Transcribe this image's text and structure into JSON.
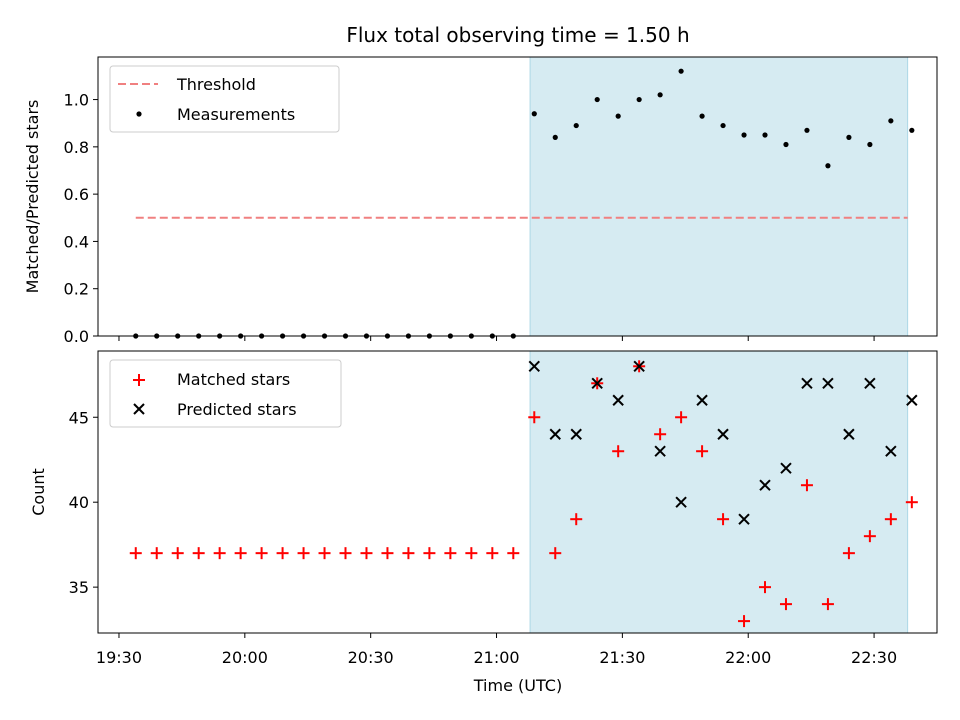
{
  "title": "Flux total observing time = 1.50 h",
  "colors": {
    "threshold": "#f08080",
    "measurement": "#000000",
    "matched": "#ff0000",
    "predicted": "#000000",
    "highlight": "#add8e6"
  },
  "chart_data": [
    {
      "type": "scatter",
      "ylabel": "Matched/Predicted stars",
      "xlim": [
        "19:25",
        "22:45"
      ],
      "ylim": [
        0,
        1.18
      ],
      "yticks": [
        "0.0",
        "0.2",
        "0.4",
        "0.6",
        "0.8",
        "1.0"
      ],
      "highlight_span": [
        "21:08",
        "22:38"
      ],
      "legend": {
        "position": "top-left",
        "entries": [
          "Threshold",
          "Measurements"
        ]
      },
      "threshold": {
        "name": "Threshold",
        "y": 0.5,
        "x_range": [
          "19:34",
          "22:38"
        ],
        "style": "dashed"
      },
      "series": [
        {
          "name": "Measurements",
          "x": [
            "19:34",
            "19:39",
            "19:44",
            "19:49",
            "19:54",
            "19:59",
            "20:04",
            "20:09",
            "20:14",
            "20:19",
            "20:24",
            "20:29",
            "20:34",
            "20:39",
            "20:44",
            "20:49",
            "20:54",
            "20:59",
            "21:04",
            "21:09",
            "21:14",
            "21:19",
            "21:24",
            "21:29",
            "21:34",
            "21:39",
            "21:44",
            "21:49",
            "21:54",
            "21:59",
            "22:04",
            "22:09",
            "22:14",
            "22:19",
            "22:24",
            "22:29",
            "22:34",
            "22:39"
          ],
          "y": [
            0,
            0,
            0,
            0,
            0,
            0,
            0,
            0,
            0,
            0,
            0,
            0,
            0,
            0,
            0,
            0,
            0,
            0,
            0,
            0.94,
            0.84,
            0.89,
            1.0,
            0.93,
            1.0,
            1.02,
            1.12,
            0.93,
            0.89,
            0.85,
            0.85,
            0.81,
            0.87,
            0.72,
            0.84,
            0.81,
            0.91,
            0.87
          ]
        }
      ]
    },
    {
      "type": "scatter",
      "xlabel": "Time (UTC)",
      "ylabel": "Count",
      "xlim": [
        "19:25",
        "22:45"
      ],
      "ylim": [
        32.3,
        48.9
      ],
      "yticks": [
        "35",
        "40",
        "45"
      ],
      "xticks": [
        "19:30",
        "20:00",
        "20:30",
        "21:00",
        "21:30",
        "22:00",
        "22:30"
      ],
      "highlight_span": [
        "21:08",
        "22:38"
      ],
      "legend": {
        "position": "top-left",
        "entries": [
          "Matched stars",
          "Predicted stars"
        ]
      },
      "series": [
        {
          "name": "Matched stars",
          "marker": "plus",
          "x": [
            "19:34",
            "19:39",
            "19:44",
            "19:49",
            "19:54",
            "19:59",
            "20:04",
            "20:09",
            "20:14",
            "20:19",
            "20:24",
            "20:29",
            "20:34",
            "20:39",
            "20:44",
            "20:49",
            "20:54",
            "20:59",
            "21:04",
            "21:09",
            "21:14",
            "21:19",
            "21:24",
            "21:29",
            "21:34",
            "21:39",
            "21:44",
            "21:49",
            "21:54",
            "21:59",
            "22:04",
            "22:09",
            "22:14",
            "22:19",
            "22:24",
            "22:29",
            "22:34",
            "22:39"
          ],
          "y": [
            37,
            37,
            37,
            37,
            37,
            37,
            37,
            37,
            37,
            37,
            37,
            37,
            37,
            37,
            37,
            37,
            37,
            37,
            37,
            45,
            37,
            39,
            47,
            43,
            48,
            44,
            45,
            43,
            39,
            33,
            35,
            34,
            41,
            34,
            37,
            38,
            39,
            40
          ]
        },
        {
          "name": "Predicted stars",
          "marker": "x",
          "x": [
            "21:09",
            "21:14",
            "21:19",
            "21:24",
            "21:29",
            "21:34",
            "21:39",
            "21:44",
            "21:49",
            "21:54",
            "21:59",
            "22:04",
            "22:09",
            "22:14",
            "22:19",
            "22:24",
            "22:29",
            "22:34",
            "22:39"
          ],
          "y": [
            48,
            44,
            44,
            47,
            46,
            48,
            43,
            40,
            46,
            44,
            39,
            41,
            42,
            47,
            47,
            44,
            47,
            43,
            46
          ]
        }
      ]
    }
  ]
}
